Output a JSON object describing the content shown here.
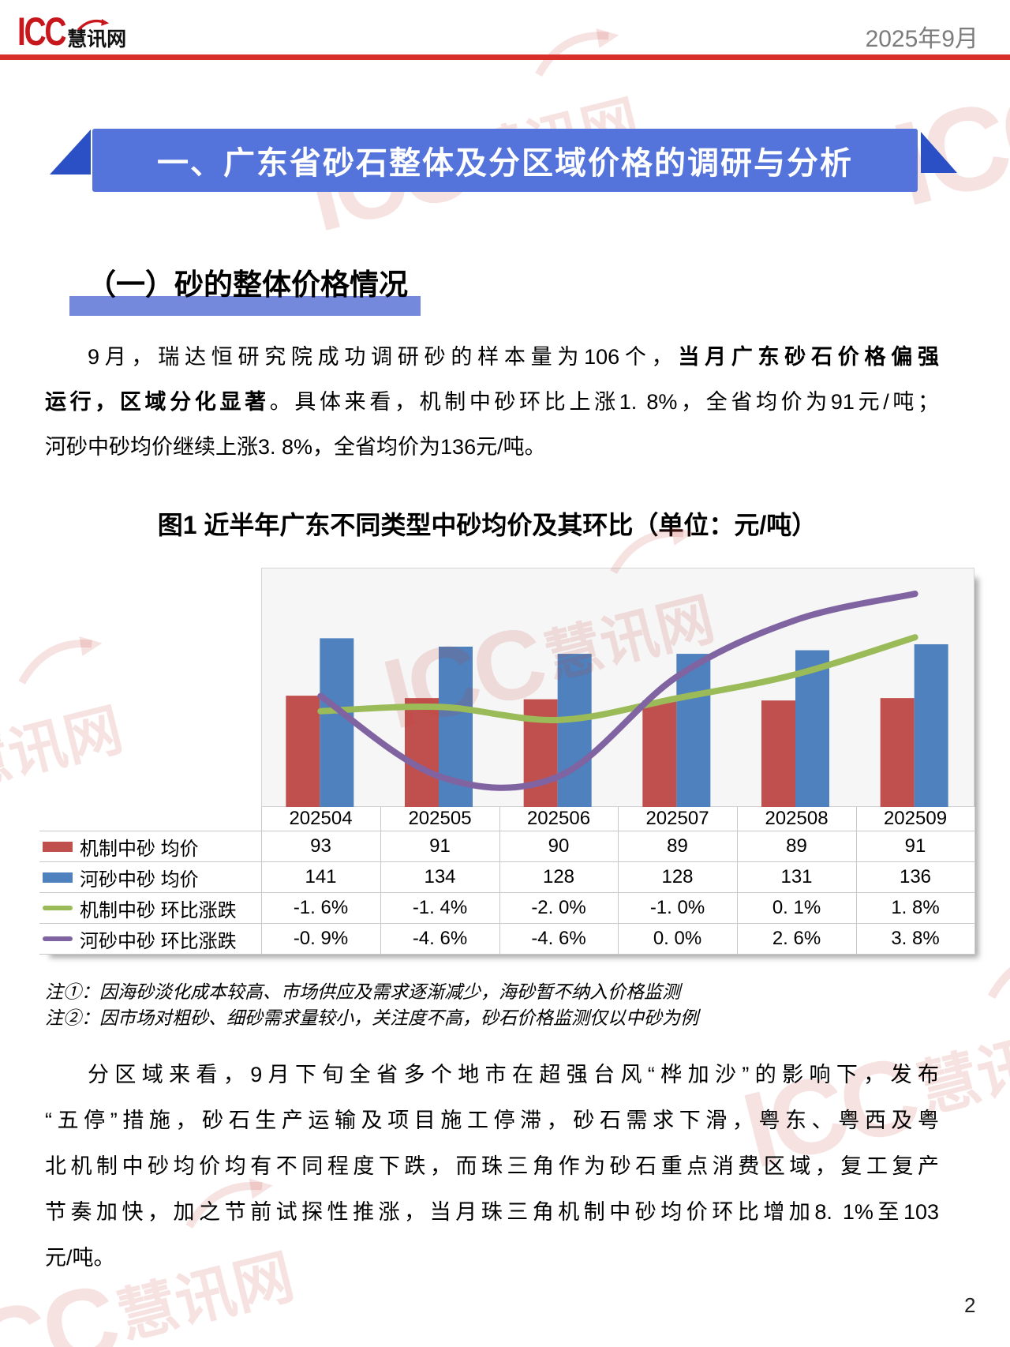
{
  "header": {
    "logo_icc": "ICC",
    "logo_cn": "慧讯网",
    "date": "2025年9月"
  },
  "banner": {
    "title": "一、广东省砂石整体及分区域价格的调研与分析"
  },
  "section": {
    "heading": "（一）砂的整体价格情况"
  },
  "p1": {
    "l1a": "9月，瑞达恒研究院成功调研砂的样本量为106个，",
    "l1b": "当月广东砂石价格偏强",
    "l2a": "运行，区域分化显著",
    "l2b": "。具体来看，机制中砂环比上涨1. 8%，全省均价为91元/吨；",
    "l3": "河砂中砂均价继续上涨3. 8%，全省均价为136元/吨。"
  },
  "figure": {
    "title": "图1 近半年广东不同类型中砂均价及其环比（单位：元/吨）"
  },
  "chart_data": {
    "type": "combo-bar-line",
    "title": "图1 近半年广东不同类型中砂均价及其环比（单位：元/吨）",
    "categories": [
      "202504",
      "202505",
      "202506",
      "202507",
      "202508",
      "202509"
    ],
    "series": [
      {
        "name": "机制中砂 均价",
        "type": "bar",
        "color": "#C0504D",
        "values": [
          93,
          91,
          90,
          89,
          89,
          91
        ]
      },
      {
        "name": "河砂中砂 均价",
        "type": "bar",
        "color": "#4E81BD",
        "values": [
          141,
          134,
          128,
          128,
          131,
          136
        ]
      },
      {
        "name": "机制中砂 环比涨跌",
        "type": "line",
        "color": "#9BBB59",
        "values": [
          -1.6,
          -1.4,
          -2.0,
          -1.0,
          0.1,
          1.8
        ]
      },
      {
        "name": "河砂中砂 环比涨跌",
        "type": "line",
        "color": "#8064A2",
        "values": [
          -0.9,
          -4.6,
          -4.6,
          0.0,
          2.6,
          3.8
        ]
      }
    ],
    "price_axis": [
      0,
      200
    ],
    "pct_axis": [
      -6,
      5
    ],
    "grid": false,
    "legend_position": "table-below",
    "xlabel": "",
    "ylabel": ""
  },
  "table": {
    "col_headers": [
      "202504",
      "202505",
      "202506",
      "202507",
      "202508",
      "202509"
    ],
    "display_rows": [
      [
        "93",
        "91",
        "90",
        "89",
        "89",
        "91"
      ],
      [
        "141",
        "134",
        "128",
        "128",
        "131",
        "136"
      ],
      [
        "-1. 6%",
        "-1. 4%",
        "-2. 0%",
        "-1. 0%",
        "0. 1%",
        "1. 8%"
      ],
      [
        "-0. 9%",
        "-4. 6%",
        "-4. 6%",
        "0. 0%",
        "2. 6%",
        "3. 8%"
      ]
    ]
  },
  "notes": [
    "注①：因海砂淡化成本较高、市场供应及需求逐渐减少，海砂暂不纳入价格监测",
    "注②：因市场对粗砂、细砂需求量较小，关注度不高，砂石价格监测仅以中砂为例"
  ],
  "p2": {
    "l1": "分区域来看，9月下旬全省多个地市在超强台风“桦加沙”的影响下，发布",
    "l2": "“五停”措施，砂石生产运输及项目施工停滞，砂石需求下滑，粤东、粤西及粤",
    "l3": "北机制中砂均价均有不同程度下跌，而珠三角作为砂石重点消费区域，复工复产",
    "l4": "节奏加快，加之节前试探性推涨，当月珠三角机制中砂均价环比增加8. 1%至103",
    "l5": "元/吨。"
  },
  "page_number": "2",
  "watermark": {
    "text_icc": "ICC",
    "text_cn": "慧讯网",
    "color": "rgba(196,62,55,0.15)"
  },
  "colors": {
    "logo_red": "#C8161D",
    "header_rule_red": "#D92F2B",
    "date_gray": "#7C7C7C",
    "banner_blue": "#5574DB",
    "banner_triangle_blue": "#2B50C6",
    "heading_bar_blue": "#7488DC",
    "bar_red": "#C0504D",
    "bar_blue": "#4E81BD",
    "line_green": "#9BBB59",
    "line_purple": "#8064A2"
  }
}
